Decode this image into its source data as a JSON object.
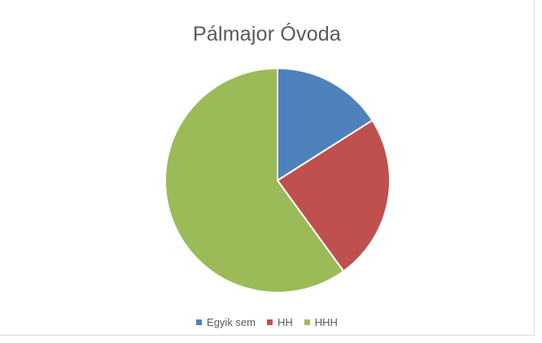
{
  "chart_data": {
    "type": "pie",
    "title": "Pálmajor Óvoda",
    "categories": [
      "Egyik sem",
      "HH",
      "HHH"
    ],
    "values": [
      16,
      24,
      60
    ],
    "colors": [
      "#4f81bd",
      "#c0504d",
      "#9bbb59"
    ],
    "legend_position": "bottom"
  }
}
